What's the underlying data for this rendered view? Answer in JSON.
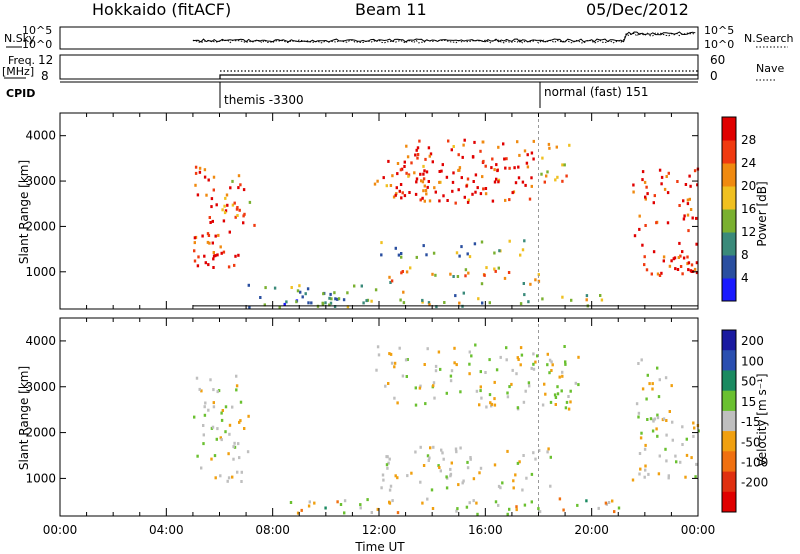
{
  "header": {
    "station": "Hokkaido (fitACF)",
    "beam": "Beam 11",
    "date": "05/Dec/2012"
  },
  "top_panels": {
    "nsky_label": "N.Sky",
    "nsky_ticks": [
      "10^5",
      "10^0"
    ],
    "nsearch_label": "N.Search",
    "nsearch_ticks": [
      "10^5",
      "10^0"
    ],
    "freq_label": "Freq.",
    "freq_unit": "[MHz]",
    "freq_ticks": [
      "12",
      "8"
    ],
    "nave_label": "Nave",
    "nave_ticks": [
      "60",
      "0"
    ],
    "cpid_label": "CPID",
    "cpid_segments": [
      {
        "label": "themis -3300",
        "start": "05:00"
      },
      {
        "label": "normal (fast) 151",
        "start": "18:00"
      }
    ]
  },
  "colors": {
    "power_scale": [
      "#1a1aff",
      "#2a4fa0",
      "#3a8a7a",
      "#7ab030",
      "#f0c020",
      "#f08a10",
      "#f03a10",
      "#e00000"
    ],
    "velocity_scale": [
      "#1a1aa0",
      "#2a4fb0",
      "#1a8a60",
      "#6ac030",
      "#c0c0c0",
      "#f0a010",
      "#f07010",
      "#e03010",
      "#e00000"
    ],
    "ground_scatter": "#bfbfbf"
  },
  "chart_data": [
    {
      "type": "heatmap",
      "name": "power",
      "ylabel": "Slant Range [km]",
      "yticks": [
        1000,
        2000,
        3000,
        4000
      ],
      "ylim": [
        180,
        4500
      ],
      "xlim": [
        "00:00",
        "24:00"
      ],
      "colorbar_label": "Power [dB]",
      "colorbar_ticks": [
        "4",
        "8",
        "12",
        "16",
        "20",
        "24",
        "28"
      ],
      "regions": [
        {
          "t0": 5.0,
          "t1": 6.9,
          "r0": 900,
          "r1": 3300,
          "level": 0.95
        },
        {
          "t0": 5.0,
          "t1": 6.2,
          "r0": 1000,
          "r1": 1800,
          "level": 1.0
        },
        {
          "t0": 6.0,
          "t1": 7.3,
          "r0": 2000,
          "r1": 3000,
          "level": 0.7
        },
        {
          "t0": 11.8,
          "t1": 18.0,
          "r0": 2500,
          "r1": 3900,
          "level": 0.9
        },
        {
          "t0": 12.5,
          "t1": 17.6,
          "r0": 2600,
          "r1": 3600,
          "level": 1.0
        },
        {
          "t0": 18.0,
          "t1": 19.5,
          "r0": 2900,
          "r1": 3800,
          "level": 0.55
        },
        {
          "t0": 21.5,
          "t1": 24.0,
          "r0": 900,
          "r1": 3300,
          "level": 0.95
        },
        {
          "t0": 22.0,
          "t1": 24.0,
          "r0": 900,
          "r1": 1500,
          "level": 1.0
        },
        {
          "t0": 12.0,
          "t1": 18.5,
          "r0": 700,
          "r1": 1100,
          "level": 0.6
        },
        {
          "t0": 12.0,
          "t1": 17.5,
          "r0": 1300,
          "r1": 1700,
          "level": 0.35
        },
        {
          "t0": 7.0,
          "t1": 12.0,
          "r0": 200,
          "r1": 700,
          "level": 0.3
        },
        {
          "t0": 9.0,
          "t1": 20.5,
          "r0": 200,
          "r1": 550,
          "level": 0.4
        }
      ]
    },
    {
      "type": "heatmap",
      "name": "velocity",
      "ylabel": "Slant Range [km]",
      "yticks": [
        1000,
        2000,
        3000,
        4000
      ],
      "ylim": [
        180,
        4500
      ],
      "xlim": [
        "00:00",
        "24:00"
      ],
      "xticks": [
        "00:00",
        "04:00",
        "08:00",
        "12:00",
        "16:00",
        "20:00",
        "00:00"
      ],
      "xlabel": "Time UT",
      "colorbar_label": "Velocity [m s⁻¹]",
      "colorbar_ticks": [
        "200",
        "100",
        "50",
        "15",
        "-15",
        "-50",
        "-100",
        "-200"
      ],
      "regions": [
        {
          "t0": 5.0,
          "t1": 7.2,
          "r0": 900,
          "r1": 3300,
          "level": 0.45
        },
        {
          "t0": 11.8,
          "t1": 19.5,
          "r0": 2500,
          "r1": 3900,
          "level": 0.45
        },
        {
          "t0": 21.5,
          "t1": 24.0,
          "r0": 900,
          "r1": 2500,
          "level": 0.45
        },
        {
          "t0": 21.5,
          "t1": 23.0,
          "r0": 2200,
          "r1": 3600,
          "level": 0.3
        },
        {
          "t0": 12.0,
          "t1": 18.5,
          "r0": 700,
          "r1": 1700,
          "level": 0.3
        },
        {
          "t0": 8.0,
          "t1": 21.0,
          "r0": 200,
          "r1": 550,
          "level": 0.6
        }
      ]
    }
  ]
}
